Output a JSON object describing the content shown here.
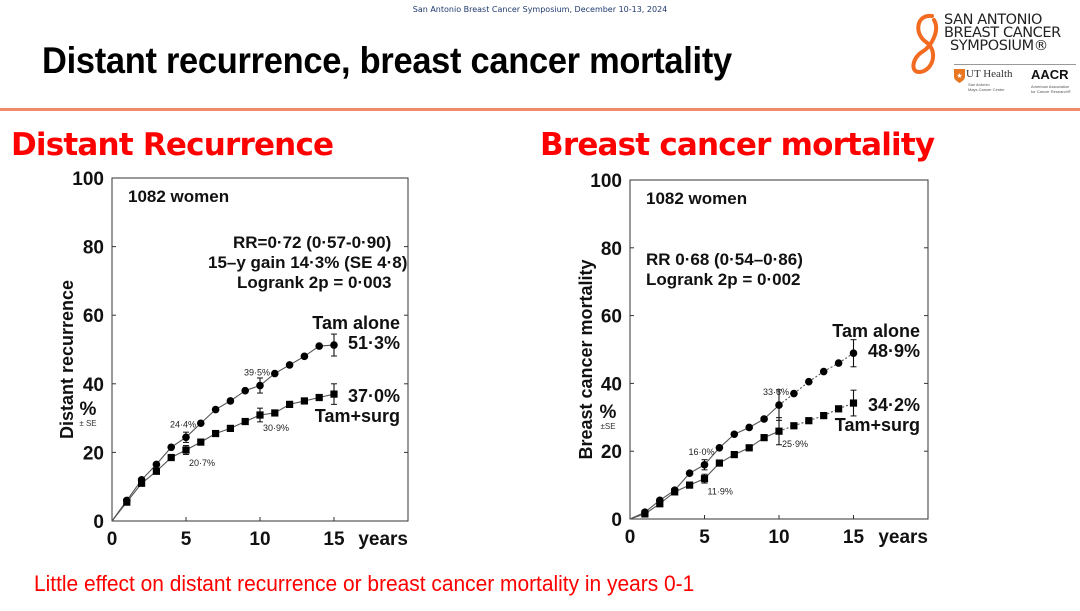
{
  "header": {
    "conference": "San Antonio Breast Cancer Symposium, December 10-13, 2024",
    "title": "Distant recurrence, breast cancer mortality"
  },
  "logo": {
    "brand_lines": [
      "SAN ANTONIO",
      "BREAST CANCER",
      "SYMPOSIUM®"
    ],
    "ut_health": "UT Health",
    "ut_sub_lines": [
      "San Antonio",
      "Mays Cancer Center"
    ],
    "aacr": "AACR",
    "aacr_sub_lines": [
      "American Association",
      "for Cancer Research®"
    ],
    "accent_color": "#f26b21"
  },
  "subtitles": {
    "left": "Distant Recurrence",
    "right": "Breast cancer mortality"
  },
  "footer": {
    "note": "Little effect on distant recurrence or breast cancer mortality in years 0-1"
  },
  "chart_data": [
    {
      "type": "line",
      "title": "Distant Recurrence",
      "xlabel": "years",
      "ylabel": "Distant recurrence",
      "ylabel_unit": "%",
      "ylabel_unit_sub": "± SE",
      "xlim": [
        0,
        20
      ],
      "ylim": [
        0,
        100
      ],
      "xticks": [
        0,
        5,
        10,
        15
      ],
      "yticks": [
        0,
        20,
        40,
        60,
        80,
        100
      ],
      "grid": false,
      "annotations": {
        "cohort": "1082 women",
        "stats": [
          "RR=0·72 (0·57-0·90)",
          "15–y gain 14·3% (SE 4·8)",
          "Logrank 2p = 0·003"
        ]
      },
      "x": [
        0,
        1,
        2,
        3,
        4,
        5,
        6,
        7,
        8,
        9,
        10,
        11,
        12,
        13,
        14,
        15
      ],
      "series": [
        {
          "name": "Tam alone",
          "marker": "circle",
          "values": [
            0,
            6,
            12,
            16.5,
            21.5,
            24.4,
            28.5,
            32.5,
            35,
            38,
            39.5,
            43,
            45.5,
            48,
            51,
            51.3
          ],
          "labels": [
            {
              "x": 5,
              "text": "24·4%"
            },
            {
              "x": 10,
              "text": "39·5%"
            }
          ],
          "error_bars": [
            {
              "x": 5,
              "se": 1.5
            },
            {
              "x": 10,
              "se": 2.2
            },
            {
              "x": 15,
              "se": 3.2
            }
          ],
          "end_label": "51·3%",
          "dashed_after": null
        },
        {
          "name": "Tam+surg",
          "marker": "square",
          "values": [
            0,
            5.5,
            11,
            14.5,
            18.5,
            20.7,
            23,
            25.5,
            27,
            29,
            30.9,
            31.5,
            34,
            35,
            36,
            37.0
          ],
          "labels": [
            {
              "x": 5,
              "text": "20·7%"
            },
            {
              "x": 10,
              "text": "30·9%"
            }
          ],
          "error_bars": [
            {
              "x": 5,
              "se": 1.3
            },
            {
              "x": 10,
              "se": 2.0
            },
            {
              "x": 15,
              "se": 3.0
            }
          ],
          "end_label": "37·0%",
          "dashed_after": null
        }
      ]
    },
    {
      "type": "line",
      "title": "Breast cancer mortality",
      "xlabel": "years",
      "ylabel": "Breast cancer mortality",
      "ylabel_unit": "%",
      "ylabel_unit_sub": "±SE",
      "xlim": [
        0,
        20
      ],
      "ylim": [
        0,
        100
      ],
      "xticks": [
        0,
        5,
        10,
        15
      ],
      "yticks": [
        0,
        20,
        40,
        60,
        80,
        100
      ],
      "grid": false,
      "annotations": {
        "cohort": "1082 women",
        "stats": [
          "RR 0·68 (0·54–0·86)",
          "Logrank 2p = 0·002"
        ]
      },
      "x": [
        0,
        1,
        2,
        3,
        4,
        5,
        6,
        7,
        8,
        9,
        10,
        11,
        12,
        13,
        14,
        15
      ],
      "series": [
        {
          "name": "Tam alone",
          "marker": "circle",
          "values": [
            0,
            2,
            5.5,
            8.5,
            13.5,
            16.0,
            21,
            25,
            27,
            29.5,
            33.6,
            37,
            40.5,
            43.5,
            46,
            48.9
          ],
          "labels": [
            {
              "x": 5,
              "text": "16·0%"
            },
            {
              "x": 10,
              "text": "33·6%"
            }
          ],
          "error_bars": [
            {
              "x": 5,
              "se": 1.5
            },
            {
              "x": 10,
              "se": 4.5
            },
            {
              "x": 15,
              "se": 4.0
            }
          ],
          "end_label": "48·9%",
          "dashed_after": 10
        },
        {
          "name": "Tam+surg",
          "marker": "square",
          "values": [
            0,
            1.5,
            4.5,
            8,
            10,
            11.9,
            16.5,
            19,
            21,
            24,
            25.9,
            27.5,
            29,
            30.5,
            32.5,
            34.2
          ],
          "labels": [
            {
              "x": 5,
              "text": "11·9%"
            },
            {
              "x": 10,
              "text": "25·9%"
            }
          ],
          "error_bars": [
            {
              "x": 5,
              "se": 1.3
            },
            {
              "x": 10,
              "se": 4.0
            },
            {
              "x": 15,
              "se": 3.8
            }
          ],
          "end_label": "34·2%",
          "dashed_after": 10
        }
      ]
    }
  ]
}
